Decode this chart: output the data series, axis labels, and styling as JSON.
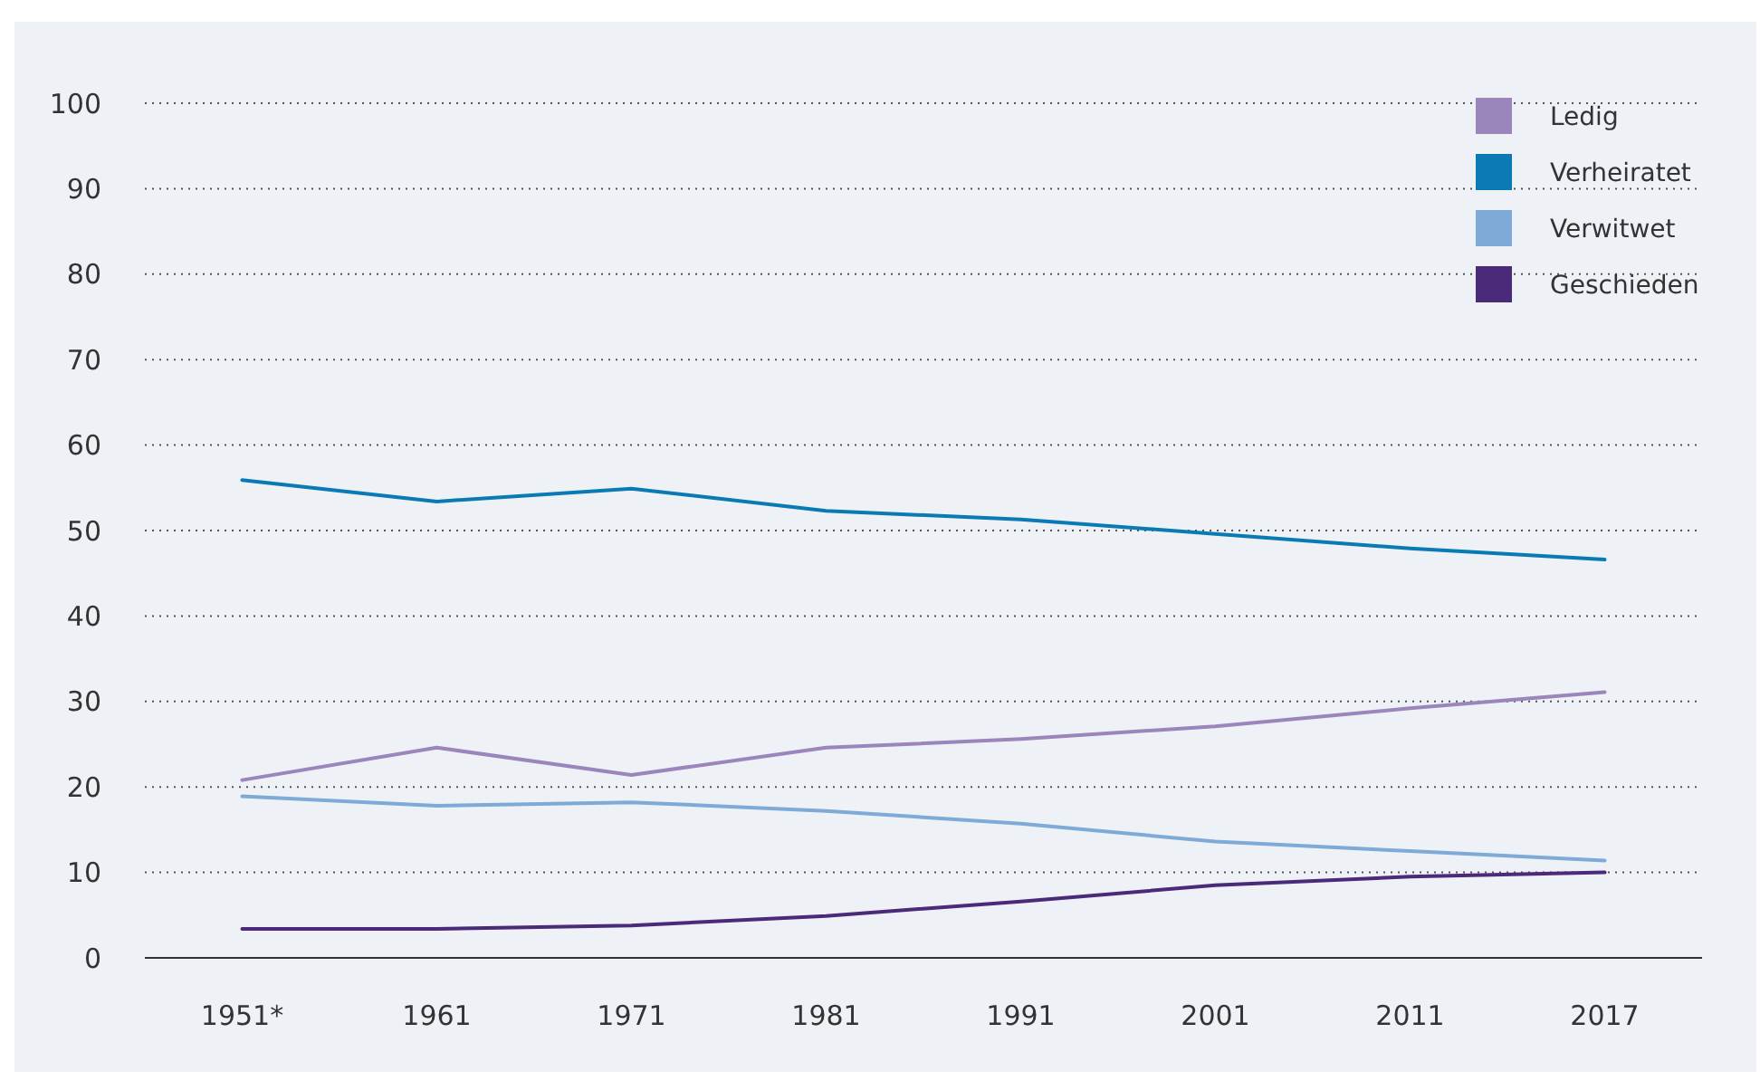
{
  "chart_data": {
    "type": "line",
    "categories": [
      "1951*",
      "1961",
      "1971",
      "1981",
      "1991",
      "2001",
      "2011",
      "2017"
    ],
    "series": [
      {
        "name": "Ledig",
        "color": "#9b85bd",
        "values": [
          20.8,
          24.6,
          21.4,
          24.6,
          25.6,
          27.1,
          29.2,
          31.1
        ]
      },
      {
        "name": "Verheiratet",
        "color": "#0a7ab5",
        "values": [
          55.9,
          53.4,
          54.9,
          52.3,
          51.3,
          49.6,
          47.9,
          46.6
        ]
      },
      {
        "name": "Verwitwet",
        "color": "#7fa9d6",
        "values": [
          18.9,
          17.8,
          18.2,
          17.2,
          15.7,
          13.6,
          12.5,
          11.4
        ]
      },
      {
        "name": "Geschieden",
        "color": "#4b2a7a",
        "values": [
          3.4,
          3.4,
          3.8,
          4.9,
          6.6,
          8.5,
          9.5,
          10
        ]
      }
    ],
    "ylim": [
      0,
      100
    ],
    "yticks": [
      0,
      10,
      20,
      30,
      40,
      50,
      60,
      70,
      80,
      90,
      100
    ],
    "grid": "y",
    "legend": "top right",
    "marker": "none",
    "line_style": "solid"
  }
}
